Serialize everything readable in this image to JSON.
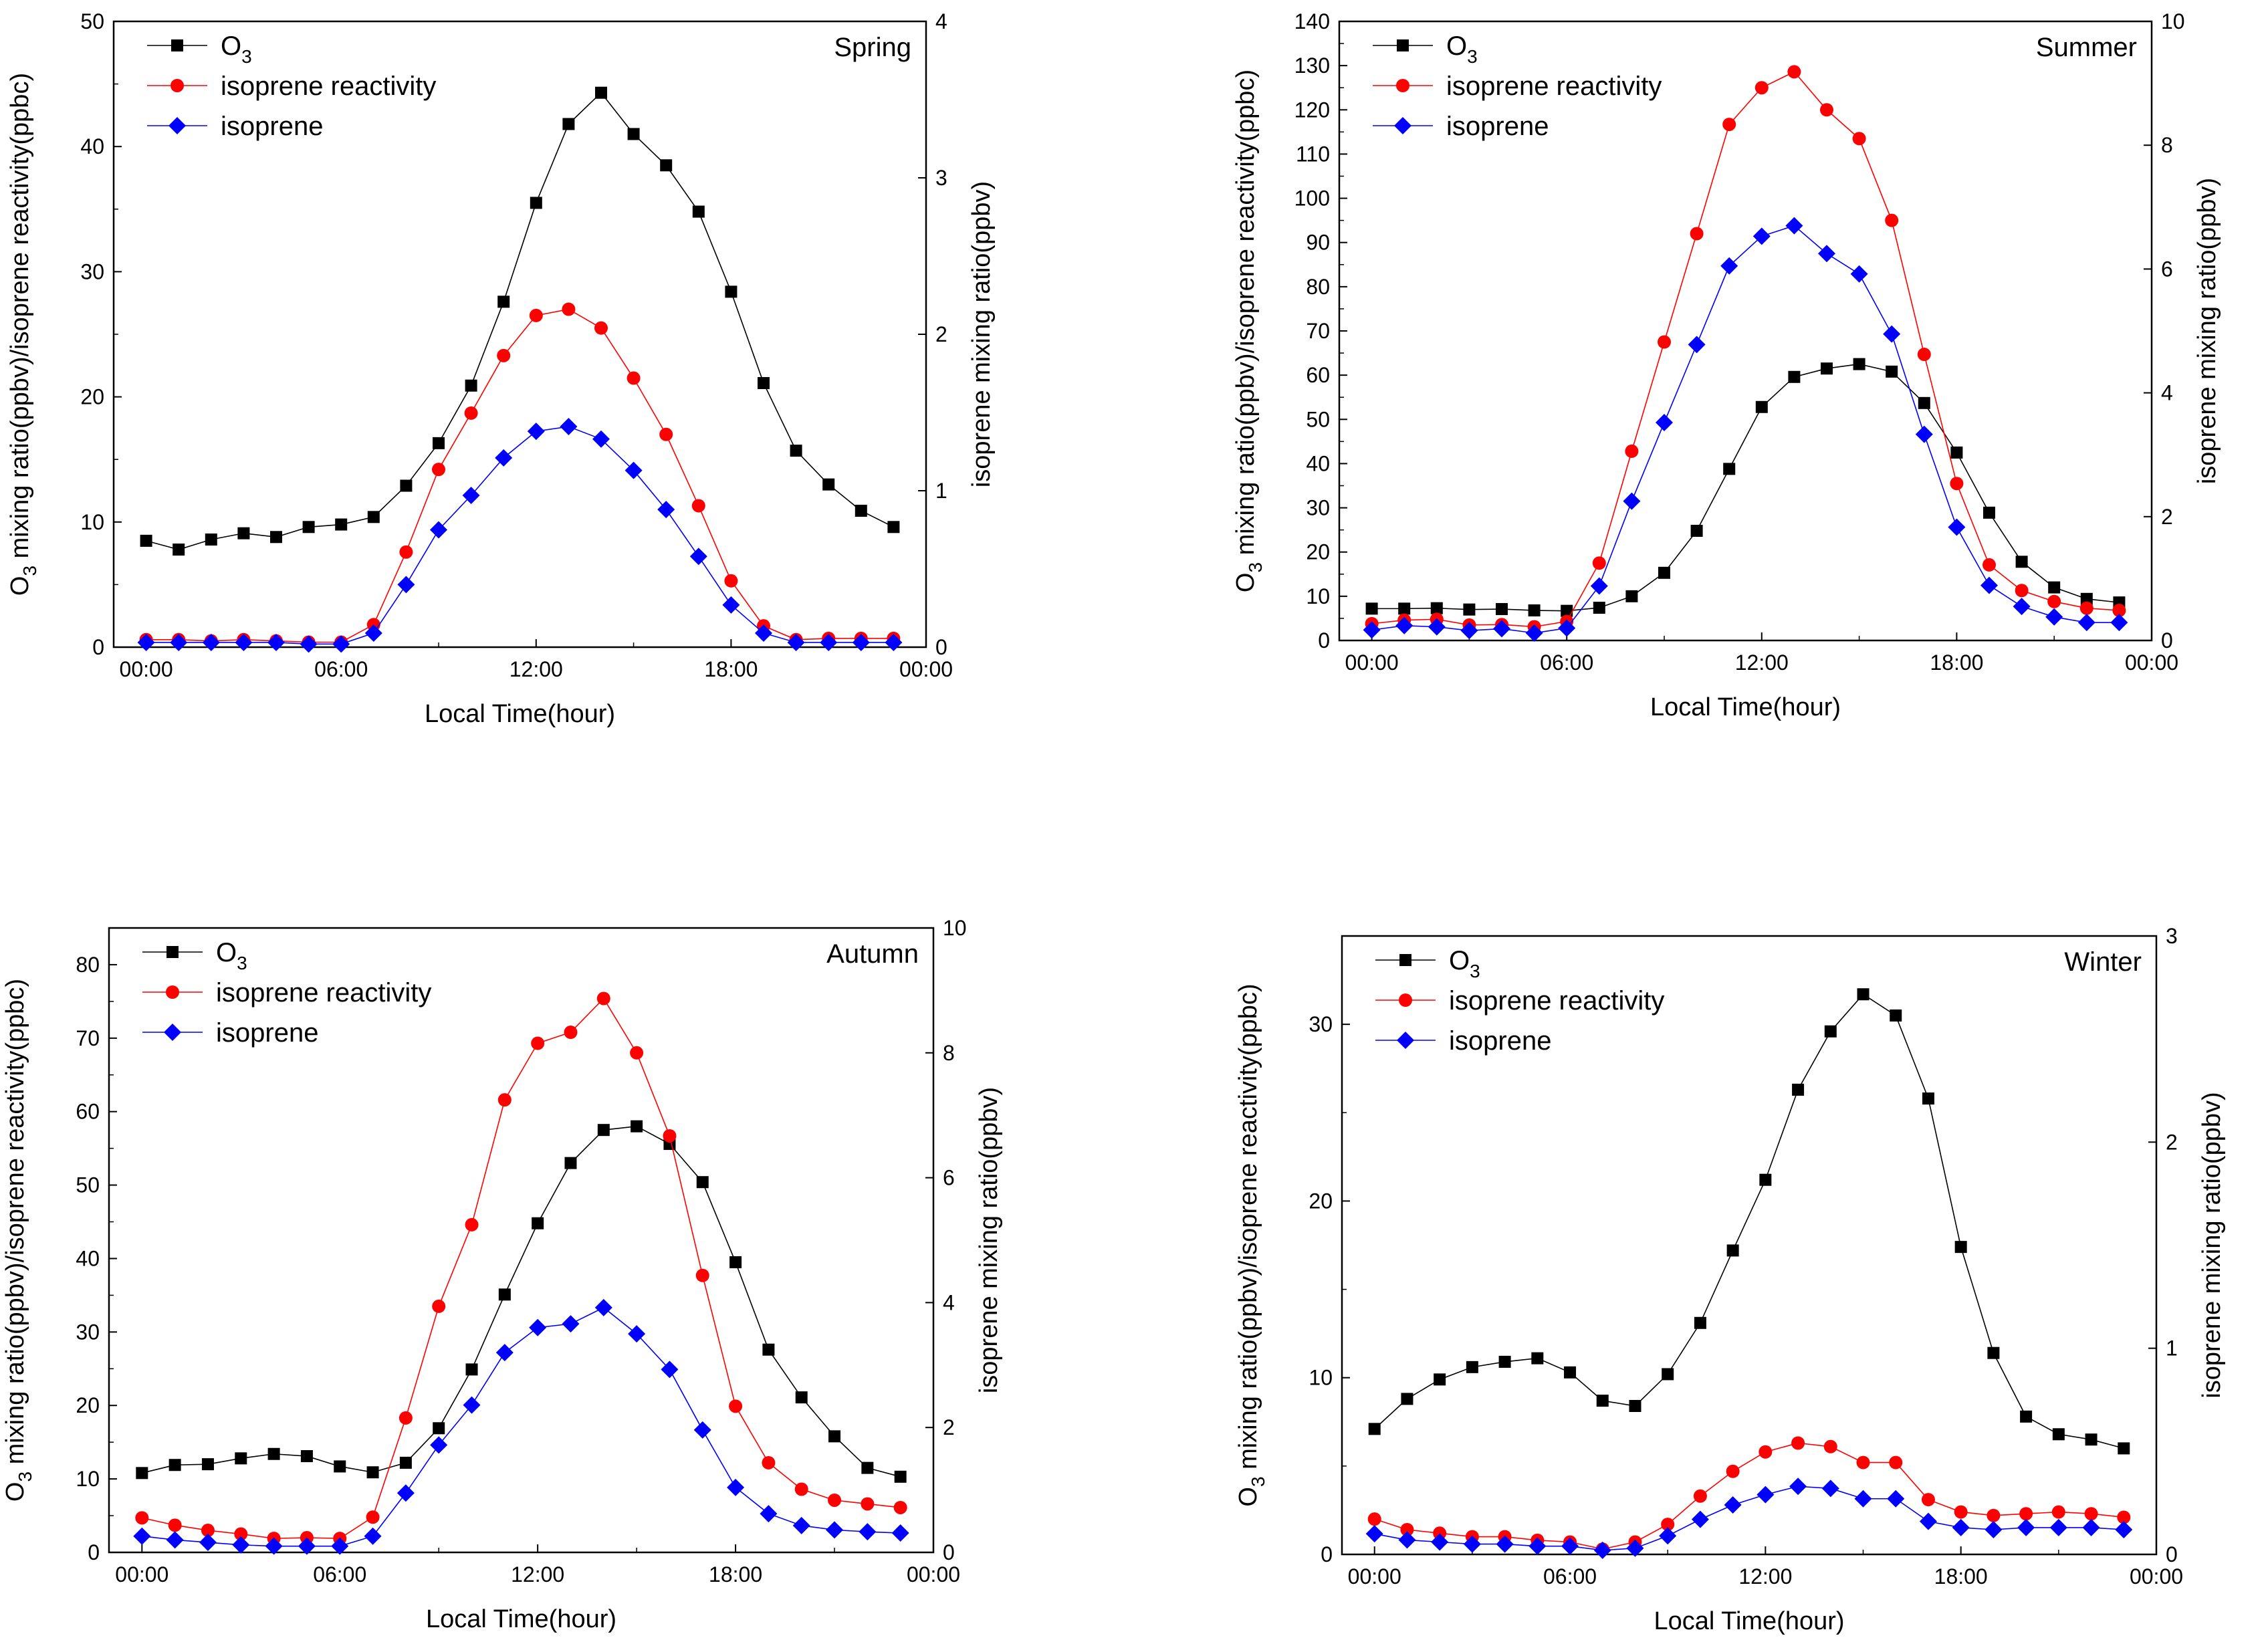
{
  "x_axis": {
    "title": "Local Time(hour)",
    "ticks": [
      {
        "value": 0,
        "label": "00:00"
      },
      {
        "value": 6,
        "label": "06:00"
      },
      {
        "value": 12,
        "label": "12:00"
      },
      {
        "value": 18,
        "label": "18:00"
      },
      {
        "value": 24,
        "label": "00:00"
      }
    ],
    "range": [
      -1,
      24
    ]
  },
  "y_left_title": {
    "o3": "O",
    "sub": "3",
    "rest": " mixing ratio(ppbv)/isoprene reactivity(ppbc)"
  },
  "y_right_title": "isoprene mixing ratio(ppbv)",
  "legend_labels": {
    "o3": "O",
    "o3_sub": "3",
    "reactivity": "isoprene reactivity",
    "isoprene": "isoprene"
  },
  "colors": {
    "o3": "#000000",
    "reactivity": "#ff0000",
    "isoprene": "#0000ff"
  },
  "hours": [
    0,
    1,
    2,
    3,
    4,
    5,
    6,
    7,
    8,
    9,
    10,
    11,
    12,
    13,
    14,
    15,
    16,
    17,
    18,
    19,
    20,
    21,
    22,
    23
  ],
  "chart_data": [
    {
      "type": "line",
      "title": "Spring",
      "xlabel": "Local Time(hour)",
      "ylabel": "O3 mixing ratio(ppbv)/isoprene reactivity(ppbc)",
      "y2label": "isoprene mixing ratio(ppbv)",
      "ylim": [
        0,
        50
      ],
      "ytick_step": 10,
      "y2lim": [
        0,
        4
      ],
      "y2tick_step": 1,
      "series": [
        {
          "name": "O3",
          "axis": "left",
          "marker": "square",
          "values": [
            8.5,
            7.8,
            8.6,
            9.1,
            8.8,
            9.6,
            9.8,
            10.4,
            12.9,
            16.3,
            20.9,
            27.6,
            35.5,
            41.8,
            44.3,
            41.0,
            38.5,
            34.8,
            28.4,
            21.1,
            15.7,
            13.0,
            10.9,
            9.6
          ]
        },
        {
          "name": "isoprene reactivity",
          "axis": "left",
          "marker": "circle",
          "values": [
            0.6,
            0.6,
            0.5,
            0.6,
            0.5,
            0.4,
            0.4,
            1.8,
            7.6,
            14.2,
            18.7,
            23.3,
            26.5,
            27.0,
            25.5,
            21.5,
            17.0,
            11.3,
            5.3,
            1.7,
            0.6,
            0.7,
            0.7,
            0.7
          ]
        },
        {
          "name": "isoprene",
          "axis": "right",
          "marker": "diamond",
          "values": [
            0.03,
            0.03,
            0.03,
            0.03,
            0.03,
            0.02,
            0.02,
            0.09,
            0.4,
            0.75,
            0.97,
            1.21,
            1.38,
            1.41,
            1.33,
            1.13,
            0.88,
            0.58,
            0.27,
            0.09,
            0.03,
            0.03,
            0.03,
            0.03
          ]
        }
      ]
    },
    {
      "type": "line",
      "title": "Summer",
      "xlabel": "Local Time(hour)",
      "ylabel": "O3 mixing ratio(ppbv)/isoprene reactivity(ppbc)",
      "y2label": "isoprene mixing ratio(ppbv)",
      "ylim": [
        0,
        140
      ],
      "ytick_step": 10,
      "y2lim": [
        0,
        10
      ],
      "y2tick_step": 2,
      "series": [
        {
          "name": "O3",
          "axis": "left",
          "marker": "square",
          "values": [
            7.2,
            7.2,
            7.3,
            7.0,
            7.1,
            6.8,
            6.7,
            7.4,
            10.0,
            15.3,
            24.8,
            38.8,
            52.8,
            59.6,
            61.5,
            62.5,
            60.8,
            53.7,
            42.5,
            28.9,
            17.8,
            12.0,
            9.4,
            8.6
          ]
        },
        {
          "name": "isoprene reactivity",
          "axis": "left",
          "marker": "circle",
          "values": [
            3.8,
            4.6,
            4.8,
            3.5,
            3.6,
            3.1,
            4.3,
            17.5,
            42.8,
            67.5,
            92.0,
            116.7,
            125.0,
            128.6,
            120.0,
            113.5,
            95.0,
            64.7,
            35.5,
            17.1,
            11.3,
            8.8,
            7.3,
            6.8
          ]
        },
        {
          "name": "isoprene",
          "axis": "right",
          "marker": "diamond",
          "values": [
            0.17,
            0.24,
            0.22,
            0.16,
            0.19,
            0.12,
            0.2,
            0.88,
            2.25,
            3.52,
            4.78,
            6.05,
            6.53,
            6.7,
            6.25,
            5.92,
            4.95,
            3.33,
            1.83,
            0.89,
            0.55,
            0.38,
            0.29,
            0.29
          ]
        }
      ]
    },
    {
      "type": "line",
      "title": "Autumn",
      "xlabel": "Local Time(hour)",
      "ylabel": "O3 mixing ratio(ppbv)/isoprene reactivity(ppbc)",
      "y2label": "isoprene mixing ratio(ppbv)",
      "ylim": [
        0,
        85
      ],
      "ytick_step": 10,
      "y2lim": [
        0,
        10
      ],
      "y2tick_step": 2,
      "series": [
        {
          "name": "O3",
          "axis": "left",
          "marker": "square",
          "values": [
            10.8,
            11.9,
            12.0,
            12.8,
            13.4,
            13.1,
            11.7,
            10.9,
            12.2,
            16.9,
            24.9,
            35.1,
            44.8,
            53.0,
            57.5,
            58.0,
            55.6,
            50.4,
            39.5,
            27.6,
            21.1,
            15.8,
            11.5,
            10.3
          ]
        },
        {
          "name": "isoprene reactivity",
          "axis": "left",
          "marker": "circle",
          "values": [
            4.7,
            3.7,
            3.0,
            2.5,
            1.9,
            2.0,
            1.9,
            4.8,
            18.3,
            33.5,
            44.6,
            61.6,
            69.3,
            70.8,
            75.4,
            68.0,
            56.7,
            37.7,
            19.9,
            12.2,
            8.6,
            7.1,
            6.6,
            6.1
          ]
        },
        {
          "name": "isoprene",
          "axis": "right",
          "marker": "diamond",
          "values": [
            0.26,
            0.2,
            0.16,
            0.12,
            0.1,
            0.1,
            0.1,
            0.26,
            0.95,
            1.72,
            2.36,
            3.2,
            3.6,
            3.66,
            3.92,
            3.5,
            2.93,
            1.96,
            1.04,
            0.62,
            0.43,
            0.36,
            0.33,
            0.31
          ]
        }
      ]
    },
    {
      "type": "line",
      "title": "Winter",
      "xlabel": "Local Time(hour)",
      "ylabel": "O3 mixing ratio(ppbv)/isoprene reactivity(ppbc)",
      "y2label": "isoprene mixing ratio(ppbv)",
      "ylim": [
        0,
        35
      ],
      "ytick_step": 10,
      "y2lim": [
        0,
        3
      ],
      "y2tick_step": 1,
      "series": [
        {
          "name": "O3",
          "axis": "left",
          "marker": "square",
          "values": [
            7.1,
            8.8,
            9.9,
            10.6,
            10.9,
            11.1,
            10.3,
            8.7,
            8.4,
            10.2,
            13.1,
            17.2,
            21.2,
            26.3,
            29.6,
            31.7,
            30.5,
            25.8,
            17.4,
            11.4,
            7.8,
            6.8,
            6.5,
            6.0
          ]
        },
        {
          "name": "isoprene reactivity",
          "axis": "left",
          "marker": "circle",
          "values": [
            2.0,
            1.4,
            1.2,
            1.0,
            1.0,
            0.8,
            0.7,
            0.3,
            0.7,
            1.7,
            3.3,
            4.7,
            5.8,
            6.3,
            6.1,
            5.2,
            5.2,
            3.1,
            2.4,
            2.2,
            2.3,
            2.4,
            2.3,
            2.1
          ]
        },
        {
          "name": "isoprene",
          "axis": "right",
          "marker": "diamond",
          "values": [
            0.1,
            0.07,
            0.06,
            0.05,
            0.05,
            0.04,
            0.04,
            0.02,
            0.03,
            0.09,
            0.17,
            0.24,
            0.29,
            0.33,
            0.32,
            0.27,
            0.27,
            0.16,
            0.13,
            0.12,
            0.13,
            0.13,
            0.13,
            0.12
          ]
        }
      ]
    }
  ]
}
